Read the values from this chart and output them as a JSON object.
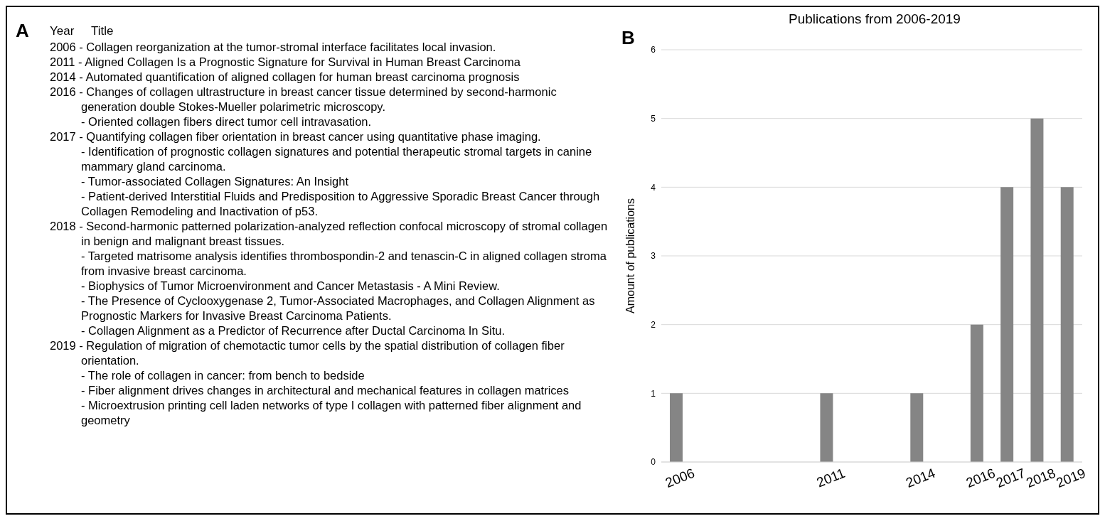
{
  "chart_data": [
    {
      "type": "other",
      "annotations": [
        "A",
        "Year",
        "Title",
        "2006 - Collagen reorganization at the tumor-stromal interface facilitates local invasion.",
        "2011 - Aligned Collagen Is a Prognostic Signature for Survival in Human Breast Carcinoma",
        "2014 - Automated quantification of aligned collagen for human breast carcinoma prognosis",
        "2016 - Changes of collagen ultrastructure in breast cancer tissue determined by second-harmonic generation double Stokes-Mueller polarimetric microscopy.",
        "- Oriented collagen fibers direct tumor cell intravasation.",
        "2017 - Quantifying collagen fiber orientation in breast cancer using quantitative phase imaging.",
        "- Identification of prognostic collagen signatures and potential therapeutic stromal targets in canine mammary gland carcinoma.",
        "- Tumor-associated Collagen Signatures: An Insight",
        "- Patient-derived Interstitial Fluids and Predisposition to Aggressive Sporadic Breast Cancer through Collagen Remodeling and Inactivation of p53.",
        "2018 - Second-harmonic patterned polarization-analyzed reflection confocal microscopy of stromal collagen in benign and malignant breast tissues.",
        "- Targeted matrisome analysis identifies thrombospondin-2 and tenascin-C in aligned collagen stroma from invasive breast carcinoma.",
        "- Biophysics of Tumor Microenvironment and Cancer Metastasis - A Mini Review.",
        "- The Presence of Cyclooxygenase 2, Tumor-Associated Macrophages, and Collagen Alignment as Prognostic Markers for Invasive Breast Carcinoma Patients.",
        "- Collagen Alignment as a Predictor of Recurrence after Ductal Carcinoma In Situ.",
        "2019 - Regulation of migration of chemotactic tumor cells by the spatial distribution of collagen fiber orientation.",
        "- The role of collagen in cancer: from bench to bedside",
        "- Fiber alignment drives changes in architectural and mechanical features in collagen matrices",
        "- Microextrusion printing cell laden networks of type I collagen with patterned fiber alignment and geometry"
      ]
    },
    {
      "type": "bar",
      "title": "Publications from 2006-2019",
      "ylabel": "Amount of publications",
      "annotations": [
        "B"
      ],
      "x": [
        2006,
        2011,
        2014,
        2016,
        2017,
        2018,
        2019
      ],
      "series": [
        {
          "color": "#858585",
          "values": [
            1,
            1,
            1,
            2,
            4,
            5,
            4
          ]
        }
      ],
      "xlim": [
        2005.5,
        2019.5
      ],
      "xticks": [
        2006,
        2011,
        2014,
        2016,
        2017,
        2018,
        2019
      ],
      "ylim": [
        0,
        6
      ],
      "yticks": [
        0,
        1,
        2,
        3,
        4,
        5,
        6
      ],
      "grid": "y",
      "legend": false
    }
  ]
}
